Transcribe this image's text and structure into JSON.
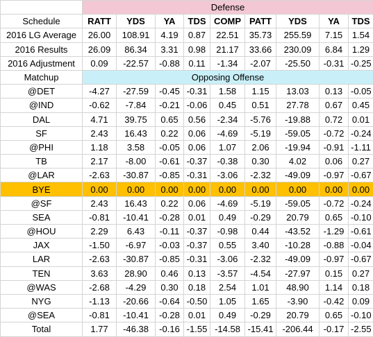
{
  "sheet": {
    "defense_title": "Defense",
    "opposing_offense_title": "Opposing Offense",
    "columns": [
      "Schedule",
      "RATT",
      "YDS",
      "YA",
      "TDS",
      "COMP",
      "PATT",
      "YDS",
      "YA",
      "TDS"
    ],
    "summary_rows": [
      {
        "label": "2016 LG Average",
        "values": [
          "26.00",
          "108.91",
          "4.19",
          "0.87",
          "22.51",
          "35.73",
          "255.59",
          "7.15",
          "1.54"
        ]
      },
      {
        "label": "2016 Results",
        "values": [
          "26.09",
          "86.34",
          "3.31",
          "0.98",
          "21.17",
          "33.66",
          "230.09",
          "6.84",
          "1.29"
        ]
      },
      {
        "label": "2016 Adjustment",
        "values": [
          "0.09",
          "-22.57",
          "-0.88",
          "0.11",
          "-1.34",
          "-2.07",
          "-25.50",
          "-0.31",
          "-0.25"
        ]
      }
    ],
    "matchup_label": "Matchup",
    "matchup_rows": [
      {
        "label": "@DET",
        "values": [
          "-4.27",
          "-27.59",
          "-0.45",
          "-0.31",
          "1.58",
          "1.15",
          "13.03",
          "0.13",
          "-0.05"
        ]
      },
      {
        "label": "@IND",
        "values": [
          "-0.62",
          "-7.84",
          "-0.21",
          "-0.06",
          "0.45",
          "0.51",
          "27.78",
          "0.67",
          "0.45"
        ]
      },
      {
        "label": "DAL",
        "values": [
          "4.71",
          "39.75",
          "0.65",
          "0.56",
          "-2.34",
          "-5.76",
          "-19.88",
          "0.72",
          "0.01"
        ]
      },
      {
        "label": "SF",
        "values": [
          "2.43",
          "16.43",
          "0.22",
          "0.06",
          "-4.69",
          "-5.19",
          "-59.05",
          "-0.72",
          "-0.24"
        ]
      },
      {
        "label": "@PHI",
        "values": [
          "1.18",
          "3.58",
          "-0.05",
          "0.06",
          "1.07",
          "2.06",
          "-19.94",
          "-0.91",
          "-1.11"
        ]
      },
      {
        "label": "TB",
        "values": [
          "2.17",
          "-8.00",
          "-0.61",
          "-0.37",
          "-0.38",
          "0.30",
          "4.02",
          "0.06",
          "0.27"
        ]
      },
      {
        "label": "@LAR",
        "values": [
          "-2.63",
          "-30.87",
          "-0.85",
          "-0.31",
          "-3.06",
          "-2.32",
          "-49.09",
          "-0.97",
          "-0.67"
        ]
      },
      {
        "label": "BYE",
        "bye": true,
        "values": [
          "0.00",
          "0.00",
          "0.00",
          "0.00",
          "0.00",
          "0.00",
          "0.00",
          "0.00",
          "0.00"
        ]
      },
      {
        "label": "@SF",
        "values": [
          "2.43",
          "16.43",
          "0.22",
          "0.06",
          "-4.69",
          "-5.19",
          "-59.05",
          "-0.72",
          "-0.24"
        ]
      },
      {
        "label": "SEA",
        "values": [
          "-0.81",
          "-10.41",
          "-0.28",
          "0.01",
          "0.49",
          "-0.29",
          "20.79",
          "0.65",
          "-0.10"
        ]
      },
      {
        "label": "@HOU",
        "values": [
          "2.29",
          "6.43",
          "-0.11",
          "-0.37",
          "-0.98",
          "0.44",
          "-43.52",
          "-1.29",
          "-0.61"
        ]
      },
      {
        "label": "JAX",
        "values": [
          "-1.50",
          "-6.97",
          "-0.03",
          "-0.37",
          "0.55",
          "3.40",
          "-10.28",
          "-0.88",
          "-0.04"
        ]
      },
      {
        "label": "LAR",
        "values": [
          "-2.63",
          "-30.87",
          "-0.85",
          "-0.31",
          "-3.06",
          "-2.32",
          "-49.09",
          "-0.97",
          "-0.67"
        ]
      },
      {
        "label": "TEN",
        "values": [
          "3.63",
          "28.90",
          "0.46",
          "0.13",
          "-3.57",
          "-4.54",
          "-27.97",
          "0.15",
          "0.27"
        ]
      },
      {
        "label": "@WAS",
        "values": [
          "-2.68",
          "-4.29",
          "0.30",
          "0.18",
          "2.54",
          "1.01",
          "48.90",
          "1.14",
          "0.18"
        ]
      },
      {
        "label": "NYG",
        "values": [
          "-1.13",
          "-20.66",
          "-0.64",
          "-0.50",
          "1.05",
          "1.65",
          "-3.90",
          "-0.42",
          "0.09"
        ]
      },
      {
        "label": "@SEA",
        "values": [
          "-0.81",
          "-10.41",
          "-0.28",
          "0.01",
          "0.49",
          "-0.29",
          "20.79",
          "0.65",
          "-0.10"
        ]
      }
    ],
    "total_row": {
      "label": "Total",
      "values": [
        "1.77",
        "-46.38",
        "-0.16",
        "-1.55",
        "-14.58",
        "-15.41",
        "-206.44",
        "-0.17",
        "-2.55"
      ]
    },
    "colors": {
      "defense_header": "#f3c7d4",
      "offense_header": "#c9f0f8",
      "bye_highlight": "#ffc000"
    }
  }
}
